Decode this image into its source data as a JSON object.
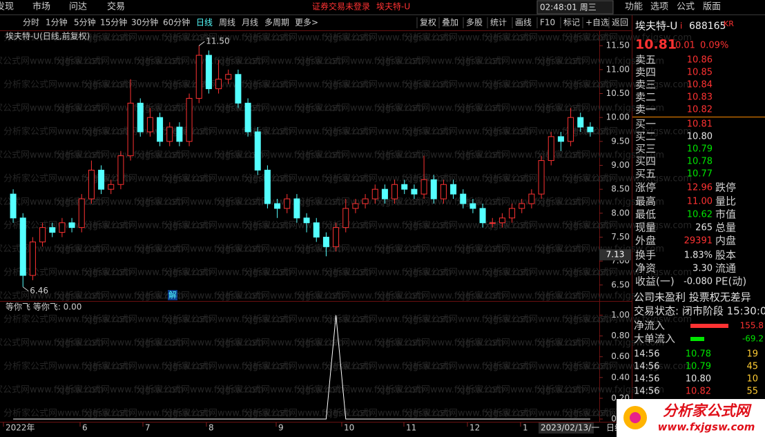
{
  "menu": {
    "items": [
      "发现",
      "市场",
      "问达",
      "交易"
    ],
    "status": "证券交易未登录",
    "stock": "埃夫特-U",
    "clock": "02:48:01 周三",
    "right": [
      "功能",
      "选项",
      "公式",
      "版面"
    ]
  },
  "toolbar": {
    "periods": [
      "分时",
      "1分钟",
      "5分钟",
      "15分钟",
      "30分钟",
      "60分钟",
      "日线",
      "周线",
      "月线",
      "多周期",
      "更多>"
    ],
    "active": 6,
    "tools": [
      "复权",
      "叠加",
      "多股",
      "统计",
      "画线",
      "F10",
      "标记",
      "+自选",
      "返回"
    ]
  },
  "watermark": "分析家公式网www.fxjgsw.com",
  "chart_data": [
    {
      "type": "candlestick",
      "title": "埃夫特-U(日线,前复权)",
      "up_color": "#ff3232",
      "down_color": "#54ffff",
      "open": [
        8.4,
        7.9,
        6.7,
        7.4,
        7.7,
        7.6,
        7.8,
        7.7,
        8.3,
        8.9,
        8.5,
        8.6,
        9.2,
        10.3,
        9.7,
        10.0,
        9.5,
        9.8,
        9.5,
        10.4,
        11.3,
        10.6,
        10.8,
        10.9,
        10.3,
        9.7,
        8.9,
        8.2,
        8.1,
        8.3,
        7.9,
        7.8,
        7.5,
        7.3,
        7.7,
        8.1,
        8.2,
        8.3,
        8.5,
        8.3,
        8.6,
        8.5,
        8.4,
        8.7,
        8.3,
        8.6,
        8.4,
        8.2,
        8.1,
        7.8,
        7.8,
        7.9,
        8.1,
        8.2,
        8.4,
        9.1,
        9.6,
        9.5,
        10.0,
        9.8
      ],
      "close": [
        7.9,
        6.7,
        7.4,
        7.7,
        7.6,
        7.8,
        7.7,
        8.3,
        8.9,
        8.5,
        8.6,
        9.2,
        10.3,
        9.7,
        10.0,
        9.5,
        9.8,
        9.5,
        10.4,
        11.3,
        10.6,
        10.8,
        10.9,
        10.3,
        9.7,
        8.9,
        8.2,
        8.1,
        8.3,
        7.9,
        7.8,
        7.5,
        7.3,
        7.7,
        8.1,
        8.2,
        8.3,
        8.5,
        8.3,
        8.6,
        8.5,
        8.4,
        8.7,
        8.3,
        8.6,
        8.4,
        8.2,
        8.1,
        7.8,
        7.8,
        7.9,
        8.1,
        8.2,
        8.4,
        9.1,
        9.6,
        9.5,
        10.0,
        9.8,
        9.7
      ],
      "high": [
        8.5,
        8.0,
        7.5,
        7.8,
        7.8,
        7.9,
        7.9,
        8.4,
        9.1,
        9.0,
        8.7,
        9.3,
        10.8,
        10.4,
        10.2,
        10.1,
        9.9,
        9.9,
        10.5,
        11.5,
        11.4,
        11.2,
        11.0,
        11.0,
        10.4,
        9.8,
        9.0,
        8.3,
        8.4,
        8.4,
        8.0,
        7.9,
        7.6,
        7.8,
        8.3,
        8.3,
        8.4,
        8.6,
        8.6,
        8.7,
        8.7,
        8.6,
        9.2,
        8.8,
        8.7,
        8.7,
        8.5,
        8.3,
        8.2,
        7.9,
        8.0,
        8.2,
        8.3,
        8.5,
        9.2,
        9.7,
        9.7,
        10.2,
        10.1,
        9.9
      ],
      "low": [
        7.8,
        6.46,
        6.6,
        7.3,
        7.5,
        7.5,
        7.6,
        7.6,
        8.2,
        8.4,
        8.4,
        8.5,
        9.1,
        9.6,
        9.6,
        9.4,
        9.4,
        9.4,
        9.4,
        10.3,
        10.5,
        10.5,
        10.7,
        10.2,
        9.6,
        8.8,
        8.1,
        7.9,
        8.0,
        7.8,
        7.6,
        7.4,
        7.1,
        7.2,
        7.6,
        8.0,
        8.1,
        8.2,
        8.2,
        8.2,
        8.4,
        8.3,
        8.3,
        8.2,
        8.2,
        8.3,
        8.1,
        8.0,
        7.7,
        7.7,
        7.7,
        7.8,
        8.0,
        8.1,
        8.3,
        9.0,
        9.3,
        9.4,
        9.7,
        9.6
      ],
      "ylim": [
        6.18,
        11.82
      ],
      "yticks": [
        {
          "value": 11.5,
          "label": "11.50"
        },
        {
          "value": 11,
          "label": "11.00"
        },
        {
          "value": 10.5,
          "label": "10.50"
        },
        {
          "value": 10,
          "label": "10.00"
        },
        {
          "value": 9.5,
          "label": "9.50"
        },
        {
          "value": 9,
          "label": "9.00"
        },
        {
          "value": 8.5,
          "label": "8.50"
        },
        {
          "value": 8,
          "label": "8.00"
        },
        {
          "value": 7.5,
          "label": "7.50"
        },
        {
          "value": 7,
          "label": "7.00"
        },
        {
          "value": 6.5,
          "label": "6.50"
        }
      ],
      "annotations": [
        {
          "value": 11.5,
          "label": "11.50"
        },
        {
          "value": 6.46,
          "label": "6.46"
        }
      ],
      "cursor": {
        "value": 7.13,
        "label": "7.13"
      },
      "badge": "解",
      "x_labels": [
        "2022年",
        "6",
        "7",
        "8",
        "9",
        "10",
        "11",
        "12",
        "1"
      ],
      "date": "2023/02/13/一",
      "period": "日线"
    },
    {
      "type": "line",
      "title": "等你飞 等你飞: 0.00",
      "color": "#ffffff",
      "values": [
        0,
        0,
        0,
        0,
        0,
        0,
        0,
        0,
        0,
        0,
        0,
        0,
        0,
        0,
        0,
        0,
        0,
        0,
        0,
        0,
        0,
        0,
        0,
        0,
        0,
        0,
        0,
        0,
        0,
        0,
        0,
        0,
        0,
        1,
        0,
        0,
        0,
        0,
        0,
        0,
        0,
        0,
        0,
        0,
        0,
        0,
        0,
        0,
        0,
        0,
        0,
        0,
        0,
        0,
        0,
        0,
        0,
        0,
        0,
        0
      ],
      "ylim": [
        -0.02,
        1.11
      ],
      "yticks": [
        {
          "value": 1,
          "label": "1.00"
        },
        {
          "value": 0.8,
          "label": "0.80"
        },
        {
          "value": 0.6,
          "label": "0.60"
        },
        {
          "value": 0.4,
          "label": "0.40"
        },
        {
          "value": 0.2,
          "label": "0.20"
        },
        {
          "value": 0,
          "label": "0.00"
        }
      ]
    }
  ],
  "quote": {
    "name": "埃夫特-U",
    "flag": "i",
    "code": "688165",
    "tag": "KR",
    "price": "10.81",
    "change": "0.01",
    "pct": "0.09%"
  },
  "book": [
    {
      "label": "卖五",
      "price": "10.86"
    },
    {
      "label": "卖四",
      "price": "10.85"
    },
    {
      "label": "卖三",
      "price": "10.84"
    },
    {
      "label": "卖二",
      "price": "10.83"
    },
    {
      "label": "卖一",
      "price": "10.82"
    },
    {
      "label": "买一",
      "price": "10.81"
    },
    {
      "label": "买二",
      "price": "10.80"
    },
    {
      "label": "买三",
      "price": "10.79"
    },
    {
      "label": "买四",
      "price": "10.78"
    },
    {
      "label": "买五",
      "price": "10.77"
    }
  ],
  "stats": [
    [
      "涨停",
      "12.96",
      "跌停"
    ],
    [
      "最高",
      "11.00",
      "量比"
    ],
    [
      "最低",
      "10.62",
      "市值"
    ],
    [
      "现量",
      "265",
      "总量"
    ],
    [
      "外盘",
      "29391",
      "内盘"
    ],
    [
      "换手",
      "1.83%",
      "股本"
    ],
    [
      "净资",
      "3.30",
      "流通"
    ],
    [
      "收益(一)",
      "-0.080",
      "PE(动)"
    ]
  ],
  "info": [
    "公司未盈利 投票权无差异",
    "交易状态: 闭市阶段 15:30:0"
  ],
  "flows": [
    {
      "label": "净流入",
      "value": "155.8"
    },
    {
      "label": "大单流入",
      "value": "-69.2"
    }
  ],
  "trades": [
    [
      "14:56",
      "10.78",
      "19"
    ],
    [
      "14:56",
      "10.79",
      "45"
    ],
    [
      "14:56",
      "10.80",
      "10"
    ],
    [
      "14:56",
      "10.82",
      "55"
    ]
  ],
  "logo": {
    "name": "分析家公式网",
    "url": "www.fxjgsw.com"
  }
}
